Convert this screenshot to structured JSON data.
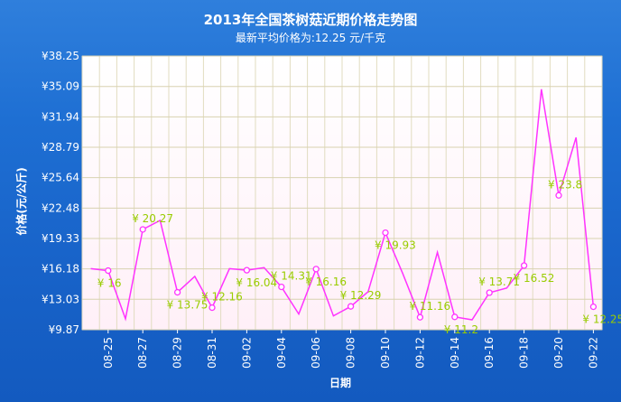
{
  "chart_data": {
    "type": "line",
    "title": "2013年全国茶树菇近期价格走势图",
    "subtitle": "最新平均价格为:12.25 元/千克",
    "xlabel": "日期",
    "ylabel": "价格(元/公斤)",
    "currency_symbol": "¥",
    "ylim": [
      9.87,
      38.25
    ],
    "y_ticks": [
      "9.87",
      "13.03",
      "16.18",
      "19.33",
      "22.48",
      "25.64",
      "28.79",
      "31.94",
      "35.09",
      "38.25"
    ],
    "x": [
      "08-24",
      "08-25",
      "08-26",
      "08-27",
      "08-28",
      "08-29",
      "08-30",
      "08-31",
      "09-01",
      "09-02",
      "09-03",
      "09-04",
      "09-05",
      "09-06",
      "09-07",
      "09-08",
      "09-09",
      "09-10",
      "09-11",
      "09-12",
      "09-13",
      "09-14",
      "09-15",
      "09-16",
      "09-17",
      "09-18",
      "09-19",
      "09-20",
      "09-21",
      "09-22"
    ],
    "x_tick_labels": [
      "08-25",
      "08-27",
      "08-29",
      "08-31",
      "09-02",
      "09-04",
      "09-06",
      "09-08",
      "09-10",
      "09-12",
      "09-14",
      "09-16",
      "09-18",
      "09-20",
      "09-22"
    ],
    "series": [
      {
        "values": [
          16.2,
          16.0,
          11.0,
          20.27,
          21.2,
          13.75,
          15.4,
          12.16,
          16.2,
          16.04,
          16.3,
          14.31,
          11.5,
          16.16,
          11.3,
          12.29,
          13.8,
          19.93,
          15.7,
          11.16,
          17.9,
          11.2,
          10.9,
          13.71,
          14.2,
          16.52,
          34.8,
          23.8,
          29.8,
          12.25
        ],
        "labeled_points": [
          {
            "x": "08-25",
            "label": "16"
          },
          {
            "x": "08-27",
            "label": "20.27"
          },
          {
            "x": "08-29",
            "label": "13.75"
          },
          {
            "x": "08-31",
            "label": "12.16"
          },
          {
            "x": "09-02",
            "label": "16.04"
          },
          {
            "x": "09-04",
            "label": "14.31"
          },
          {
            "x": "09-06",
            "label": "16.16"
          },
          {
            "x": "09-08",
            "label": "12.29"
          },
          {
            "x": "09-10",
            "label": "19.93"
          },
          {
            "x": "09-12",
            "label": "11.16"
          },
          {
            "x": "09-14",
            "label": "11.2"
          },
          {
            "x": "09-16",
            "label": "13.71"
          },
          {
            "x": "09-18",
            "label": "16.52"
          },
          {
            "x": "09-20",
            "label": "23.8"
          },
          {
            "x": "09-22",
            "label": "12.25"
          }
        ]
      }
    ],
    "grid": true,
    "colors": {
      "line": "#ff33ff",
      "data_label": "#99cc00",
      "background": "#1e6fd3",
      "plot_bg": "#ffffff",
      "grid": "#d8d8b0"
    }
  }
}
